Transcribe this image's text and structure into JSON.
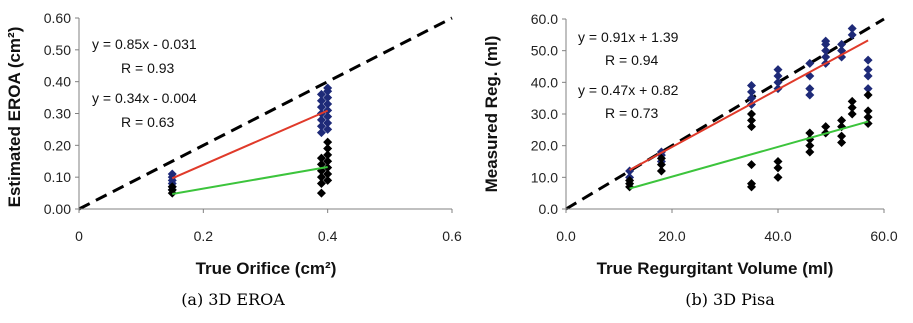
{
  "chart_data": [
    {
      "type": "scatter",
      "caption": "(a) 3D EROA",
      "xlabel": "True Orifice (cm²)",
      "ylabel": "Estimated EROA (cm²)",
      "xlim": [
        0,
        0.6
      ],
      "ylim": [
        0,
        0.6
      ],
      "xticks": [
        "0",
        "0.2",
        "0.4",
        "0.6"
      ],
      "yticks": [
        "0.00",
        "0.10",
        "0.20",
        "0.30",
        "0.40",
        "0.50",
        "0.60"
      ],
      "grid": false,
      "annotations": [
        "y = 0.85x - 0.031",
        "R = 0.93",
        "y = 0.34x - 0.004",
        "R = 0.63"
      ],
      "identity_line": {
        "style": "dashed",
        "color": "#000000"
      },
      "series": [
        {
          "color": "#1e2a78",
          "points": [
            [
              0.15,
              0.07
            ],
            [
              0.15,
              0.08
            ],
            [
              0.15,
              0.09
            ],
            [
              0.15,
              0.1
            ],
            [
              0.15,
              0.11
            ],
            [
              0.15,
              0.06
            ],
            [
              0.39,
              0.24
            ],
            [
              0.39,
              0.26
            ],
            [
              0.39,
              0.28
            ],
            [
              0.39,
              0.3
            ],
            [
              0.39,
              0.32
            ],
            [
              0.39,
              0.34
            ],
            [
              0.39,
              0.36
            ],
            [
              0.4,
              0.25
            ],
            [
              0.4,
              0.27
            ],
            [
              0.4,
              0.29
            ],
            [
              0.4,
              0.31
            ],
            [
              0.4,
              0.33
            ],
            [
              0.4,
              0.35
            ],
            [
              0.4,
              0.37
            ],
            [
              0.4,
              0.38
            ]
          ],
          "fit": {
            "slope": 0.85,
            "intercept": -0.031,
            "x_range": [
              0.15,
              0.4
            ],
            "color": "#e03a2a"
          }
        },
        {
          "color": "#000000",
          "points": [
            [
              0.15,
              0.05
            ],
            [
              0.15,
              0.06
            ],
            [
              0.15,
              0.07
            ],
            [
              0.39,
              0.05
            ],
            [
              0.39,
              0.08
            ],
            [
              0.39,
              0.1
            ],
            [
              0.39,
              0.12
            ],
            [
              0.39,
              0.14
            ],
            [
              0.39,
              0.16
            ],
            [
              0.4,
              0.09
            ],
            [
              0.4,
              0.11
            ],
            [
              0.4,
              0.13
            ],
            [
              0.4,
              0.15
            ],
            [
              0.4,
              0.17
            ],
            [
              0.4,
              0.19
            ],
            [
              0.4,
              0.21
            ]
          ],
          "fit": {
            "slope": 0.34,
            "intercept": -0.004,
            "x_range": [
              0.15,
              0.4
            ],
            "color": "#3cc43c"
          }
        }
      ]
    },
    {
      "type": "scatter",
      "caption": "(b) 3D Pisa",
      "xlabel": "True Regurgitant Volume (ml)",
      "ylabel": "Measured Reg. (ml)",
      "xlim": [
        0,
        60
      ],
      "ylim": [
        0,
        60
      ],
      "xticks": [
        "0.0",
        "20.0",
        "40.0",
        "60.0"
      ],
      "yticks": [
        "0.0",
        "10.0",
        "20.0",
        "30.0",
        "40.0",
        "50.0",
        "60.0"
      ],
      "grid": false,
      "annotations": [
        "y = 0.91x + 1.39",
        "R = 0.94",
        "y = 0.47x + 0.82",
        "R = 0.73"
      ],
      "identity_line": {
        "style": "dashed",
        "color": "#000000"
      },
      "series": [
        {
          "color": "#1e2a78",
          "points": [
            [
              12,
              10
            ],
            [
              12,
              12
            ],
            [
              18,
              15
            ],
            [
              18,
              17
            ],
            [
              18,
              18
            ],
            [
              35,
              33
            ],
            [
              35,
              35
            ],
            [
              35,
              37
            ],
            [
              35,
              39
            ],
            [
              40,
              38
            ],
            [
              40,
              40
            ],
            [
              40,
              42
            ],
            [
              40,
              44
            ],
            [
              46,
              36
            ],
            [
              46,
              38
            ],
            [
              46,
              42
            ],
            [
              46,
              46
            ],
            [
              49,
              46
            ],
            [
              49,
              48
            ],
            [
              49,
              50
            ],
            [
              49,
              52
            ],
            [
              49,
              53
            ],
            [
              52,
              48
            ],
            [
              52,
              50
            ],
            [
              52,
              52
            ],
            [
              54,
              55
            ],
            [
              54,
              57
            ],
            [
              57,
              38
            ],
            [
              57,
              42
            ],
            [
              57,
              44
            ],
            [
              57,
              47
            ]
          ],
          "fit": {
            "slope": 0.91,
            "intercept": 1.39,
            "x_range": [
              12,
              57
            ],
            "color": "#e03a2a"
          }
        },
        {
          "color": "#000000",
          "points": [
            [
              12,
              7
            ],
            [
              12,
              8
            ],
            [
              12,
              9
            ],
            [
              18,
              12
            ],
            [
              18,
              14
            ],
            [
              18,
              16
            ],
            [
              35,
              7
            ],
            [
              35,
              8
            ],
            [
              35,
              14
            ],
            [
              35,
              26
            ],
            [
              35,
              28
            ],
            [
              35,
              30
            ],
            [
              40,
              10
            ],
            [
              40,
              13
            ],
            [
              40,
              15
            ],
            [
              46,
              18
            ],
            [
              46,
              20
            ],
            [
              46,
              22
            ],
            [
              46,
              24
            ],
            [
              49,
              24
            ],
            [
              49,
              26
            ],
            [
              52,
              21
            ],
            [
              52,
              23
            ],
            [
              52,
              26
            ],
            [
              52,
              28
            ],
            [
              54,
              30
            ],
            [
              54,
              32
            ],
            [
              54,
              34
            ],
            [
              57,
              27
            ],
            [
              57,
              29
            ],
            [
              57,
              31
            ],
            [
              57,
              36
            ]
          ],
          "fit": {
            "slope": 0.47,
            "intercept": 0.82,
            "x_range": [
              12,
              57
            ],
            "color": "#3cc43c"
          }
        }
      ]
    }
  ]
}
